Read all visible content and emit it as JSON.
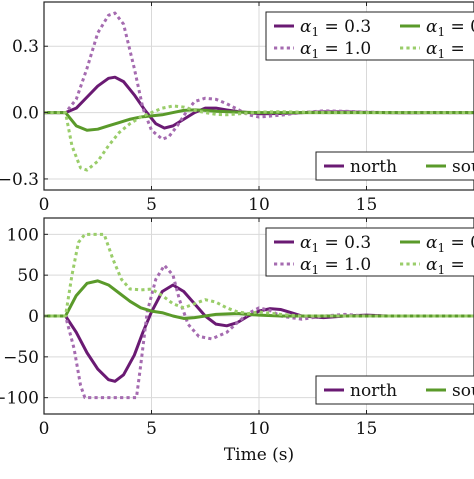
{
  "chart_data": [
    {
      "type": "line",
      "title": "",
      "xlabel": "",
      "ylabel": "",
      "xlim": [
        0,
        20
      ],
      "ylim": [
        -0.35,
        0.5
      ],
      "xticks": [
        0,
        5,
        10,
        15
      ],
      "xtick_labels": [
        "0",
        "5",
        "10",
        "15"
      ],
      "yticks": [
        -0.3,
        0,
        0.3
      ],
      "ytick_labels": [
        "−0.3",
        "0.0",
        "0.3"
      ],
      "grid": true,
      "legend_params": {
        "placement": "top-right",
        "entries": [
          {
            "label": "α1 = 0.3",
            "base": "α",
            "sub": "1",
            "rest": " = 0.3",
            "color": "#6a1a73",
            "style": "solid"
          },
          {
            "label": "α1 = 0",
            "base": "α",
            "sub": "1",
            "rest": " = 0",
            "color": "#5a9a2a",
            "style": "solid"
          },
          {
            "label": "α1 = 1.0",
            "base": "α",
            "sub": "1",
            "rest": " = 1.0",
            "color": "#a56bb0",
            "style": "dotted"
          },
          {
            "label": "α1 =",
            "base": "α",
            "sub": "1",
            "rest": " =",
            "color": "#9acd6a",
            "style": "dotted"
          }
        ]
      },
      "legend_regions": {
        "placement": "bottom-right",
        "entries": [
          {
            "label": "north",
            "color": "#6a1a73",
            "style": "solid"
          },
          {
            "label": "sou",
            "color": "#5a9a2a",
            "style": "solid"
          }
        ]
      },
      "series": [
        {
          "color": "#6a1a73",
          "style": "solid",
          "x": [
            0,
            1,
            1.5,
            2,
            2.5,
            3,
            3.3,
            3.7,
            4.2,
            4.7,
            5.2,
            5.6,
            6,
            6.5,
            7,
            7.5,
            8,
            8.5,
            9,
            10,
            11,
            12,
            13,
            14,
            15,
            16,
            17,
            18,
            19,
            20
          ],
          "y": [
            0,
            0,
            0.02,
            0.07,
            0.12,
            0.155,
            0.16,
            0.14,
            0.08,
            0.01,
            -0.05,
            -0.07,
            -0.06,
            -0.03,
            0,
            0.02,
            0.02,
            0.012,
            0.005,
            -0.005,
            -0.004,
            0,
            0.003,
            0.003,
            0.001,
            0,
            -0.001,
            0,
            0,
            0
          ]
        },
        {
          "color": "#a56bb0",
          "style": "dotted",
          "x": [
            0,
            1,
            1.5,
            2,
            2.5,
            3,
            3.3,
            3.7,
            4.2,
            4.6,
            5,
            5.5,
            5.8,
            6.2,
            6.6,
            7,
            7.5,
            8,
            8.5,
            9,
            9.5,
            10,
            11,
            12,
            13,
            14,
            15,
            16,
            17,
            18,
            19,
            20
          ],
          "y": [
            0,
            0,
            0.06,
            0.2,
            0.36,
            0.44,
            0.45,
            0.4,
            0.2,
            0.02,
            -0.08,
            -0.12,
            -0.11,
            -0.06,
            0,
            0.05,
            0.065,
            0.06,
            0.04,
            0.015,
            -0.01,
            -0.02,
            -0.012,
            0,
            0.008,
            0.006,
            0.002,
            0,
            -0.001,
            0,
            0,
            0
          ]
        },
        {
          "color": "#5a9a2a",
          "style": "solid",
          "x": [
            0,
            1,
            1.5,
            2,
            2.5,
            3,
            3.5,
            4,
            4.5,
            5,
            5.5,
            6,
            6.5,
            7,
            7.5,
            8,
            9,
            10,
            11,
            12,
            13,
            14,
            15,
            16,
            17,
            18,
            19,
            20
          ],
          "y": [
            0,
            0,
            -0.06,
            -0.08,
            -0.075,
            -0.06,
            -0.045,
            -0.03,
            -0.02,
            -0.015,
            -0.01,
            0,
            0.01,
            0.012,
            0.01,
            0.006,
            0.002,
            0,
            0,
            0,
            0,
            0,
            0,
            0,
            0,
            0,
            0,
            0
          ]
        },
        {
          "color": "#9acd6a",
          "style": "dotted",
          "x": [
            0,
            1,
            1.3,
            1.7,
            2,
            2.5,
            3,
            3.5,
            4,
            4.5,
            5,
            5.5,
            6,
            6.5,
            7,
            7.5,
            8,
            8.5,
            9,
            10,
            11,
            12,
            13,
            14,
            15,
            16,
            17,
            18,
            19,
            20
          ],
          "y": [
            0,
            0,
            -0.15,
            -0.25,
            -0.26,
            -0.22,
            -0.15,
            -0.09,
            -0.05,
            -0.02,
            0,
            0.02,
            0.03,
            0.025,
            0.01,
            0,
            -0.008,
            -0.01,
            -0.006,
            0.002,
            0.004,
            0.002,
            0,
            0,
            0,
            0,
            0,
            0,
            0,
            0
          ]
        }
      ]
    },
    {
      "type": "line",
      "title": "",
      "xlabel": "Time (s)",
      "ylabel": "",
      "xlim": [
        0,
        20
      ],
      "ylim": [
        -120,
        120
      ],
      "xticks": [
        0,
        5,
        10,
        15
      ],
      "xtick_labels": [
        "0",
        "5",
        "10",
        "15"
      ],
      "yticks": [
        -100,
        -50,
        0,
        50,
        100
      ],
      "ytick_labels": [
        "−100",
        "−50",
        "0",
        "50",
        "100"
      ],
      "grid": true,
      "legend_params": {
        "placement": "top-right",
        "entries": [
          {
            "label": "α1 = 0.3",
            "base": "α",
            "sub": "1",
            "rest": " = 0.3",
            "color": "#6a1a73",
            "style": "solid"
          },
          {
            "label": "α1 = 0",
            "base": "α",
            "sub": "1",
            "rest": " = 0",
            "color": "#5a9a2a",
            "style": "solid"
          },
          {
            "label": "α1 = 1.0",
            "base": "α",
            "sub": "1",
            "rest": " = 1.0",
            "color": "#a56bb0",
            "style": "dotted"
          },
          {
            "label": "α1 =",
            "base": "α",
            "sub": "1",
            "rest": " =",
            "color": "#9acd6a",
            "style": "dotted"
          }
        ]
      },
      "legend_regions": {
        "placement": "bottom-right",
        "entries": [
          {
            "label": "north",
            "color": "#6a1a73",
            "style": "solid"
          },
          {
            "label": "sou",
            "color": "#5a9a2a",
            "style": "solid"
          }
        ]
      },
      "series": [
        {
          "color": "#6a1a73",
          "style": "solid",
          "x": [
            0,
            1,
            1.5,
            2,
            2.5,
            3,
            3.3,
            3.7,
            4.2,
            4.6,
            5,
            5.5,
            6,
            6.5,
            7,
            7.5,
            8,
            8.5,
            9,
            9.5,
            10,
            10.5,
            11,
            11.5,
            12,
            13,
            14,
            15,
            16,
            17,
            18,
            19,
            20
          ],
          "y": [
            0,
            0,
            -20,
            -45,
            -65,
            -78,
            -80,
            -72,
            -48,
            -20,
            5,
            30,
            38,
            30,
            15,
            0,
            -10,
            -12,
            -8,
            0,
            6,
            9,
            8,
            4,
            0,
            -2,
            0,
            1,
            0,
            0,
            0,
            0,
            0
          ]
        },
        {
          "color": "#a56bb0",
          "style": "dotted",
          "x": [
            0,
            1,
            1.4,
            1.7,
            1.9,
            4.3,
            4.5,
            4.8,
            5.2,
            5.6,
            6,
            6.3,
            6.7,
            7.2,
            7.8,
            8.5,
            9,
            9.5,
            10,
            10.5,
            11,
            12,
            13,
            14,
            15,
            16,
            17,
            18,
            19,
            20
          ],
          "y": [
            0,
            0,
            -40,
            -85,
            -100,
            -100,
            -60,
            5,
            45,
            62,
            50,
            20,
            -10,
            -25,
            -28,
            -20,
            -8,
            3,
            10,
            7,
            0,
            -4,
            0,
            2,
            0,
            0,
            0,
            0,
            0,
            0
          ]
        },
        {
          "color": "#5a9a2a",
          "style": "solid",
          "x": [
            0,
            1,
            1.5,
            2,
            2.5,
            3,
            3.5,
            4,
            4.5,
            5,
            5.5,
            6,
            6.5,
            7,
            7.5,
            8,
            9,
            10,
            11,
            12,
            13,
            14,
            15,
            16,
            17,
            18,
            19,
            20
          ],
          "y": [
            0,
            0,
            25,
            40,
            43,
            38,
            28,
            18,
            10,
            6,
            4,
            0,
            -3,
            -2,
            0,
            2,
            3,
            1,
            0,
            0,
            0,
            0,
            0,
            0,
            0,
            0,
            0,
            0
          ]
        },
        {
          "color": "#9acd6a",
          "style": "dotted",
          "x": [
            0,
            1,
            1.3,
            1.6,
            1.9,
            2.8,
            3.2,
            3.6,
            4,
            4.5,
            5,
            5.5,
            6,
            6.5,
            7,
            7.5,
            8,
            8.5,
            9,
            9.5,
            10,
            11,
            12,
            13,
            14,
            15,
            16,
            17,
            18,
            19,
            20
          ],
          "y": [
            0,
            0,
            50,
            90,
            100,
            100,
            70,
            45,
            33,
            32,
            33,
            25,
            15,
            10,
            15,
            20,
            17,
            10,
            5,
            3,
            5,
            2,
            0,
            0,
            0,
            0,
            0,
            0,
            0,
            0,
            0
          ]
        }
      ]
    }
  ]
}
